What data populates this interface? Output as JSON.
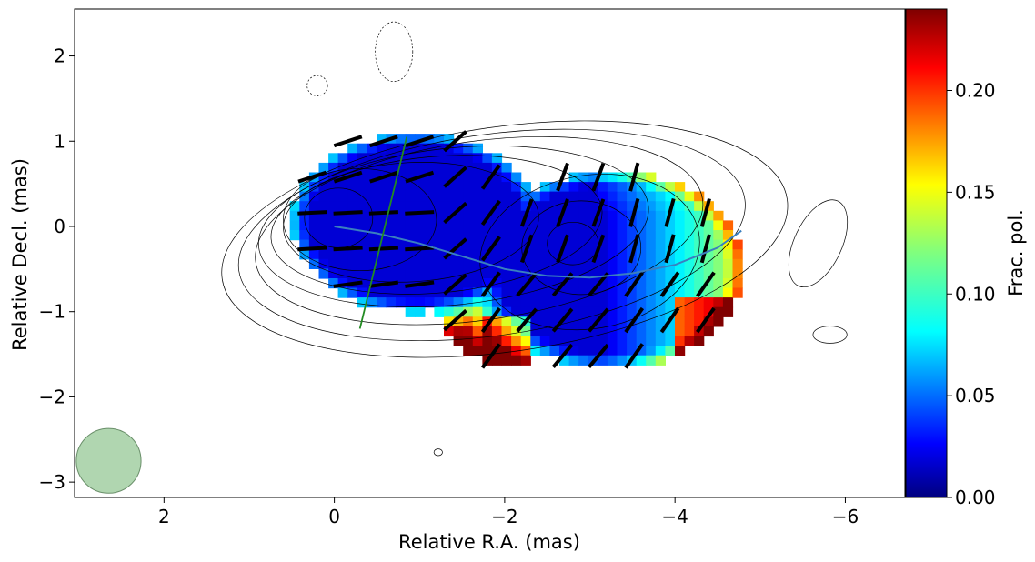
{
  "chart_data": {
    "type": "heatmap",
    "title": "",
    "xlabel": "Relative R.A. (mas)",
    "ylabel": "Relative Decl. (mas)",
    "xlim": [
      3.05,
      -6.7
    ],
    "ylim": [
      -3.18,
      2.55
    ],
    "x_ticks": [
      2,
      0,
      -2,
      -4,
      -6
    ],
    "x_tick_labels": [
      "2",
      "0",
      "−2",
      "−4",
      "−6"
    ],
    "y_ticks": [
      2,
      1,
      0,
      -1,
      -2,
      -3
    ],
    "y_tick_labels": [
      "2",
      "1",
      "0",
      "−1",
      "−2",
      "−3"
    ],
    "colorbar": {
      "label": "Frac. pol.",
      "colormap": "jet",
      "range": [
        0.0,
        0.24
      ],
      "ticks": [
        0.0,
        0.05,
        0.1,
        0.15,
        0.2
      ],
      "tick_labels": [
        "0.00",
        "0.05",
        "0.10",
        "0.15",
        "0.20"
      ]
    },
    "contour_levels": [
      {
        "cx": -2.0,
        "cy": -0.15,
        "a": 3.35,
        "b": 1.32,
        "rot": -8
      },
      {
        "cx": -1.85,
        "cy": -0.1,
        "a": 3.0,
        "b": 1.18,
        "rot": -8
      },
      {
        "cx": -1.7,
        "cy": -0.05,
        "a": 2.65,
        "b": 1.05,
        "rot": -8
      },
      {
        "cx": -1.4,
        "cy": 0.0,
        "a": 2.3,
        "b": 0.92,
        "rot": -6
      },
      {
        "cx": -1.2,
        "cy": 0.02,
        "a": 1.95,
        "b": 0.8,
        "rot": -5
      },
      {
        "cx": -0.9,
        "cy": 0.05,
        "a": 1.5,
        "b": 0.7,
        "rot": -3
      },
      {
        "cx": -0.3,
        "cy": 0.08,
        "a": 0.9,
        "b": 0.6,
        "rot": 0
      },
      {
        "cx": -0.05,
        "cy": 0.1,
        "a": 0.4,
        "b": 0.35,
        "rot": 0
      },
      {
        "cx": -3.0,
        "cy": -0.3,
        "a": 1.3,
        "b": 0.9,
        "rot": -10
      },
      {
        "cx": -2.9,
        "cy": -0.25,
        "a": 0.7,
        "b": 0.55,
        "rot": 0
      },
      {
        "cx": -2.8,
        "cy": -0.2,
        "a": 0.3,
        "b": 0.25,
        "rot": 0
      }
    ],
    "outer_contours": [
      {
        "cx": -5.68,
        "cy": -0.2,
        "a": 0.28,
        "b": 0.55,
        "rot": 25
      },
      {
        "cx": -5.82,
        "cy": -1.27,
        "a": 0.2,
        "b": 0.1,
        "rot": 0
      },
      {
        "cx": -0.7,
        "cy": 2.05,
        "a": 0.22,
        "b": 0.35,
        "rot": 0,
        "dashed": true
      },
      {
        "cx": 0.2,
        "cy": 1.65,
        "a": 0.12,
        "b": 0.12,
        "rot": 0,
        "dashed": true
      },
      {
        "cx": -1.22,
        "cy": -2.65,
        "a": 0.05,
        "b": 0.04,
        "rot": 0
      }
    ],
    "ridge_line": {
      "color": "#3a7fbf",
      "x": [
        0.0,
        -0.5,
        -1.0,
        -1.5,
        -2.0,
        -2.5,
        -3.0,
        -3.5,
        -4.0,
        -4.5,
        -4.78
      ],
      "y": [
        0.0,
        -0.08,
        -0.2,
        -0.35,
        -0.5,
        -0.58,
        -0.6,
        -0.55,
        -0.45,
        -0.25,
        -0.05
      ]
    },
    "cut_line": {
      "color": "#228b22",
      "x": [
        -0.85,
        -0.3
      ],
      "y": [
        1.05,
        -1.2
      ]
    },
    "beam": {
      "x": 2.65,
      "y": -2.75,
      "radius": 0.38,
      "color": "#8fc48f"
    },
    "evpa_vectors_note": "black bars indicate EVPA directions over the polarized region"
  }
}
